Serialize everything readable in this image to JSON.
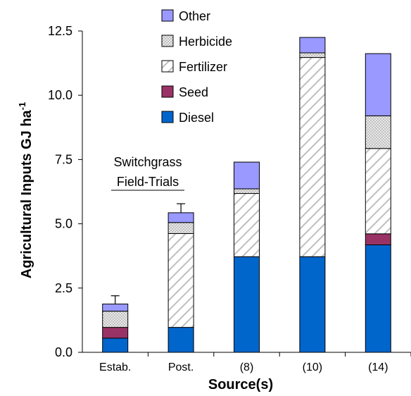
{
  "chart_data": {
    "type": "bar",
    "stacked": true,
    "title": "",
    "xlabel": "Source(s)",
    "ylabel": "Agricultural Inputs GJ ha",
    "ylabel_superscript": "-1",
    "ylim": [
      0,
      12.5
    ],
    "yticks": [
      "0.0",
      "2.5",
      "5.0",
      "7.5",
      "10.0",
      "12.5"
    ],
    "ytick_values": [
      0,
      2.5,
      5.0,
      7.5,
      10.0,
      12.5
    ],
    "grid": false,
    "legend_placement": "top-center",
    "categories": [
      "Estab.",
      "Post.",
      "(8)",
      "(10)",
      "(14)"
    ],
    "series": [
      {
        "name": "Diesel",
        "key": "diesel",
        "color": "#0066cc",
        "pattern": "solid",
        "values": [
          0.55,
          0.97,
          3.72,
          3.72,
          4.18
        ]
      },
      {
        "name": "Seed",
        "key": "seed",
        "color": "#993366",
        "pattern": "solid",
        "values": [
          0.42,
          0.0,
          0.0,
          0.0,
          0.43
        ]
      },
      {
        "name": "Fertilizer",
        "key": "fertilizer",
        "color": "#ffffff",
        "pattern": "hatch",
        "values": [
          0.0,
          3.65,
          2.46,
          7.75,
          3.32
        ]
      },
      {
        "name": "Herbicide",
        "key": "herbicide",
        "color": "#ffffff",
        "pattern": "dots",
        "values": [
          0.63,
          0.43,
          0.18,
          0.18,
          1.27
        ]
      },
      {
        "name": "Other",
        "key": "other",
        "color": "#9999ff",
        "pattern": "solid",
        "values": [
          0.28,
          0.38,
          1.04,
          0.6,
          2.42
        ]
      }
    ],
    "error_bars": [
      {
        "category": "Estab.",
        "top": 2.2
      },
      {
        "category": "Post.",
        "top": 5.78
      }
    ],
    "legend_order": [
      "other",
      "herbicide",
      "fertilizer",
      "seed",
      "diesel"
    ],
    "annotation": {
      "line1": "Switchgrass",
      "line2": "Field-Trials"
    }
  }
}
